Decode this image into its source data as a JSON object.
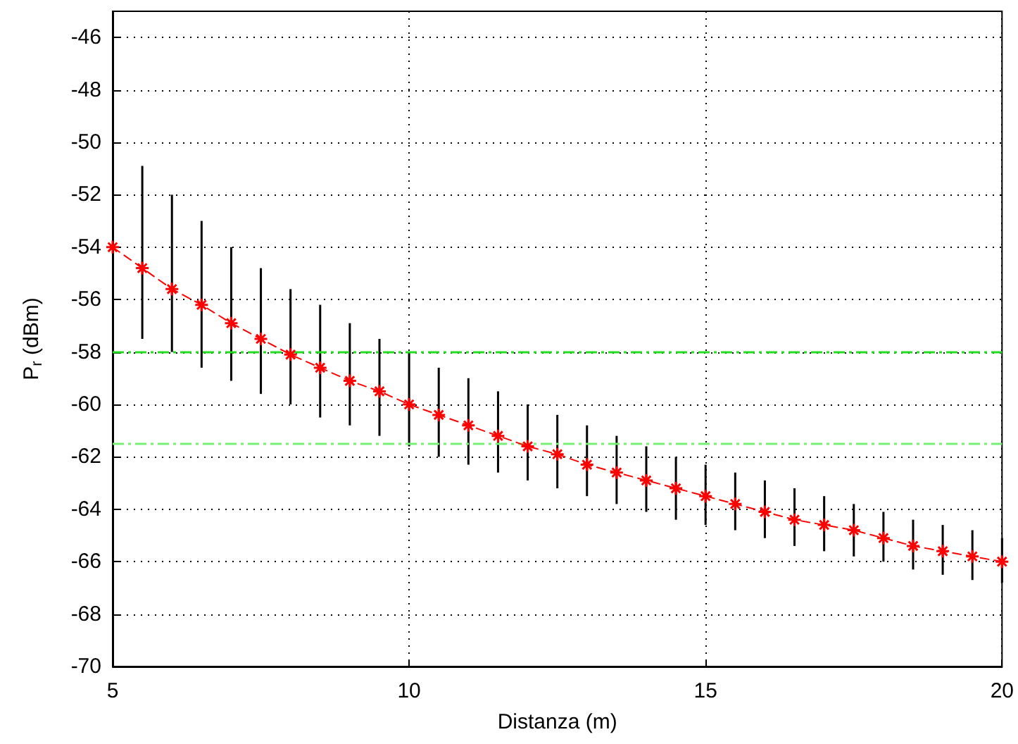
{
  "chart_data": {
    "type": "line",
    "xlabel": "Distanza (m)",
    "ylabel": "P$_{r}$ (dBm)",
    "x": [
      5,
      5.5,
      6,
      6.5,
      7,
      7.5,
      8,
      8.5,
      9,
      9.5,
      10,
      10.5,
      11,
      11.5,
      12,
      12.5,
      13,
      13.5,
      14,
      14.5,
      15,
      15.5,
      16,
      16.5,
      17,
      17.5,
      18,
      18.5,
      19,
      19.5,
      20
    ],
    "series": [
      {
        "color": "#ff0000",
        "values": [
          -54.0,
          -54.8,
          -55.6,
          -56.2,
          -56.9,
          -57.5,
          -58.1,
          -58.6,
          -59.1,
          -59.5,
          -60.0,
          -60.4,
          -60.8,
          -61.2,
          -61.6,
          -61.9,
          -62.3,
          -62.6,
          -62.9,
          -63.2,
          -63.5,
          -63.8,
          -64.1,
          -64.4,
          -64.6,
          -64.8,
          -65.1,
          -65.4,
          -65.6,
          -65.8,
          -66.0
        ],
        "errors": [
          null,
          [
            -57.5,
            -50.9
          ],
          [
            -58.0,
            -52.0
          ],
          [
            -58.6,
            -53.0
          ],
          [
            -59.1,
            -54.0
          ],
          [
            -59.6,
            -54.8
          ],
          [
            -60.0,
            -55.6
          ],
          [
            -60.5,
            -56.2
          ],
          [
            -60.8,
            -56.9
          ],
          [
            -61.2,
            -57.5
          ],
          [
            -61.6,
            -58.0
          ],
          [
            -62.0,
            -58.6
          ],
          [
            -62.3,
            -59.0
          ],
          [
            -62.6,
            -59.5
          ],
          [
            -62.9,
            -60.0
          ],
          [
            -63.2,
            -60.4
          ],
          [
            -63.5,
            -60.8
          ],
          [
            -63.8,
            -61.2
          ],
          [
            -64.1,
            -61.6
          ],
          [
            -64.4,
            -62.0
          ],
          [
            -64.6,
            -62.3
          ],
          [
            -64.8,
            -62.6
          ],
          [
            -65.1,
            -62.9
          ],
          [
            -65.4,
            -63.2
          ],
          [
            -65.6,
            -63.5
          ],
          [
            -65.8,
            -63.8
          ],
          [
            -66.0,
            -64.1
          ],
          [
            -66.3,
            -64.4
          ],
          [
            -66.5,
            -64.6
          ],
          [
            -66.7,
            -64.8
          ],
          [
            -66.8,
            -65.1
          ]
        ]
      }
    ],
    "xlim": [
      5,
      20
    ],
    "xticks": [
      5,
      10,
      15,
      20
    ],
    "ylim": [
      -70,
      -45
    ],
    "yticks": [
      -70,
      -68,
      -66,
      -64,
      -62,
      -60,
      -58,
      -56,
      -54,
      -52,
      -50,
      -48,
      -46
    ],
    "ref_lines": [
      {
        "axis": "y",
        "value": -58,
        "color": "#22dd22",
        "line_style": "dashed"
      },
      {
        "axis": "y",
        "value": -61.5,
        "color": "#77ee77",
        "line_style": "dashed"
      }
    ],
    "grid": true,
    "marker": "cross",
    "line_style": "dashed"
  }
}
